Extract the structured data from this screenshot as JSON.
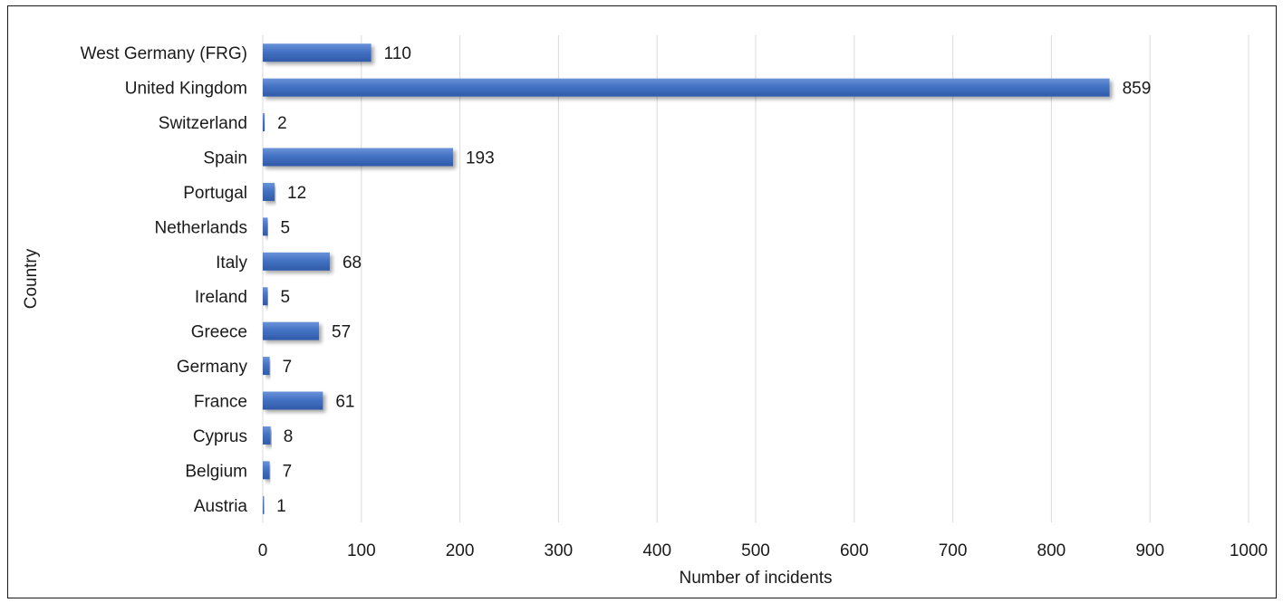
{
  "chart_data": {
    "type": "bar",
    "orientation": "horizontal",
    "title": "",
    "xlabel": "Number of incidents",
    "ylabel": "Country",
    "xlim": [
      0,
      1000
    ],
    "xticks": [
      0,
      100,
      200,
      300,
      400,
      500,
      600,
      700,
      800,
      900,
      1000
    ],
    "grid": "vertical",
    "legend": "none",
    "bar_color": "#4472C4",
    "categories": [
      "West Germany (FRG)",
      "United Kingdom",
      "Switzerland",
      "Spain",
      "Portugal",
      "Netherlands",
      "Italy",
      "Ireland",
      "Greece",
      "Germany",
      "France",
      "Cyprus",
      "Belgium",
      "Austria"
    ],
    "values": [
      110,
      859,
      2,
      193,
      12,
      5,
      68,
      5,
      57,
      7,
      61,
      8,
      7,
      1
    ]
  }
}
